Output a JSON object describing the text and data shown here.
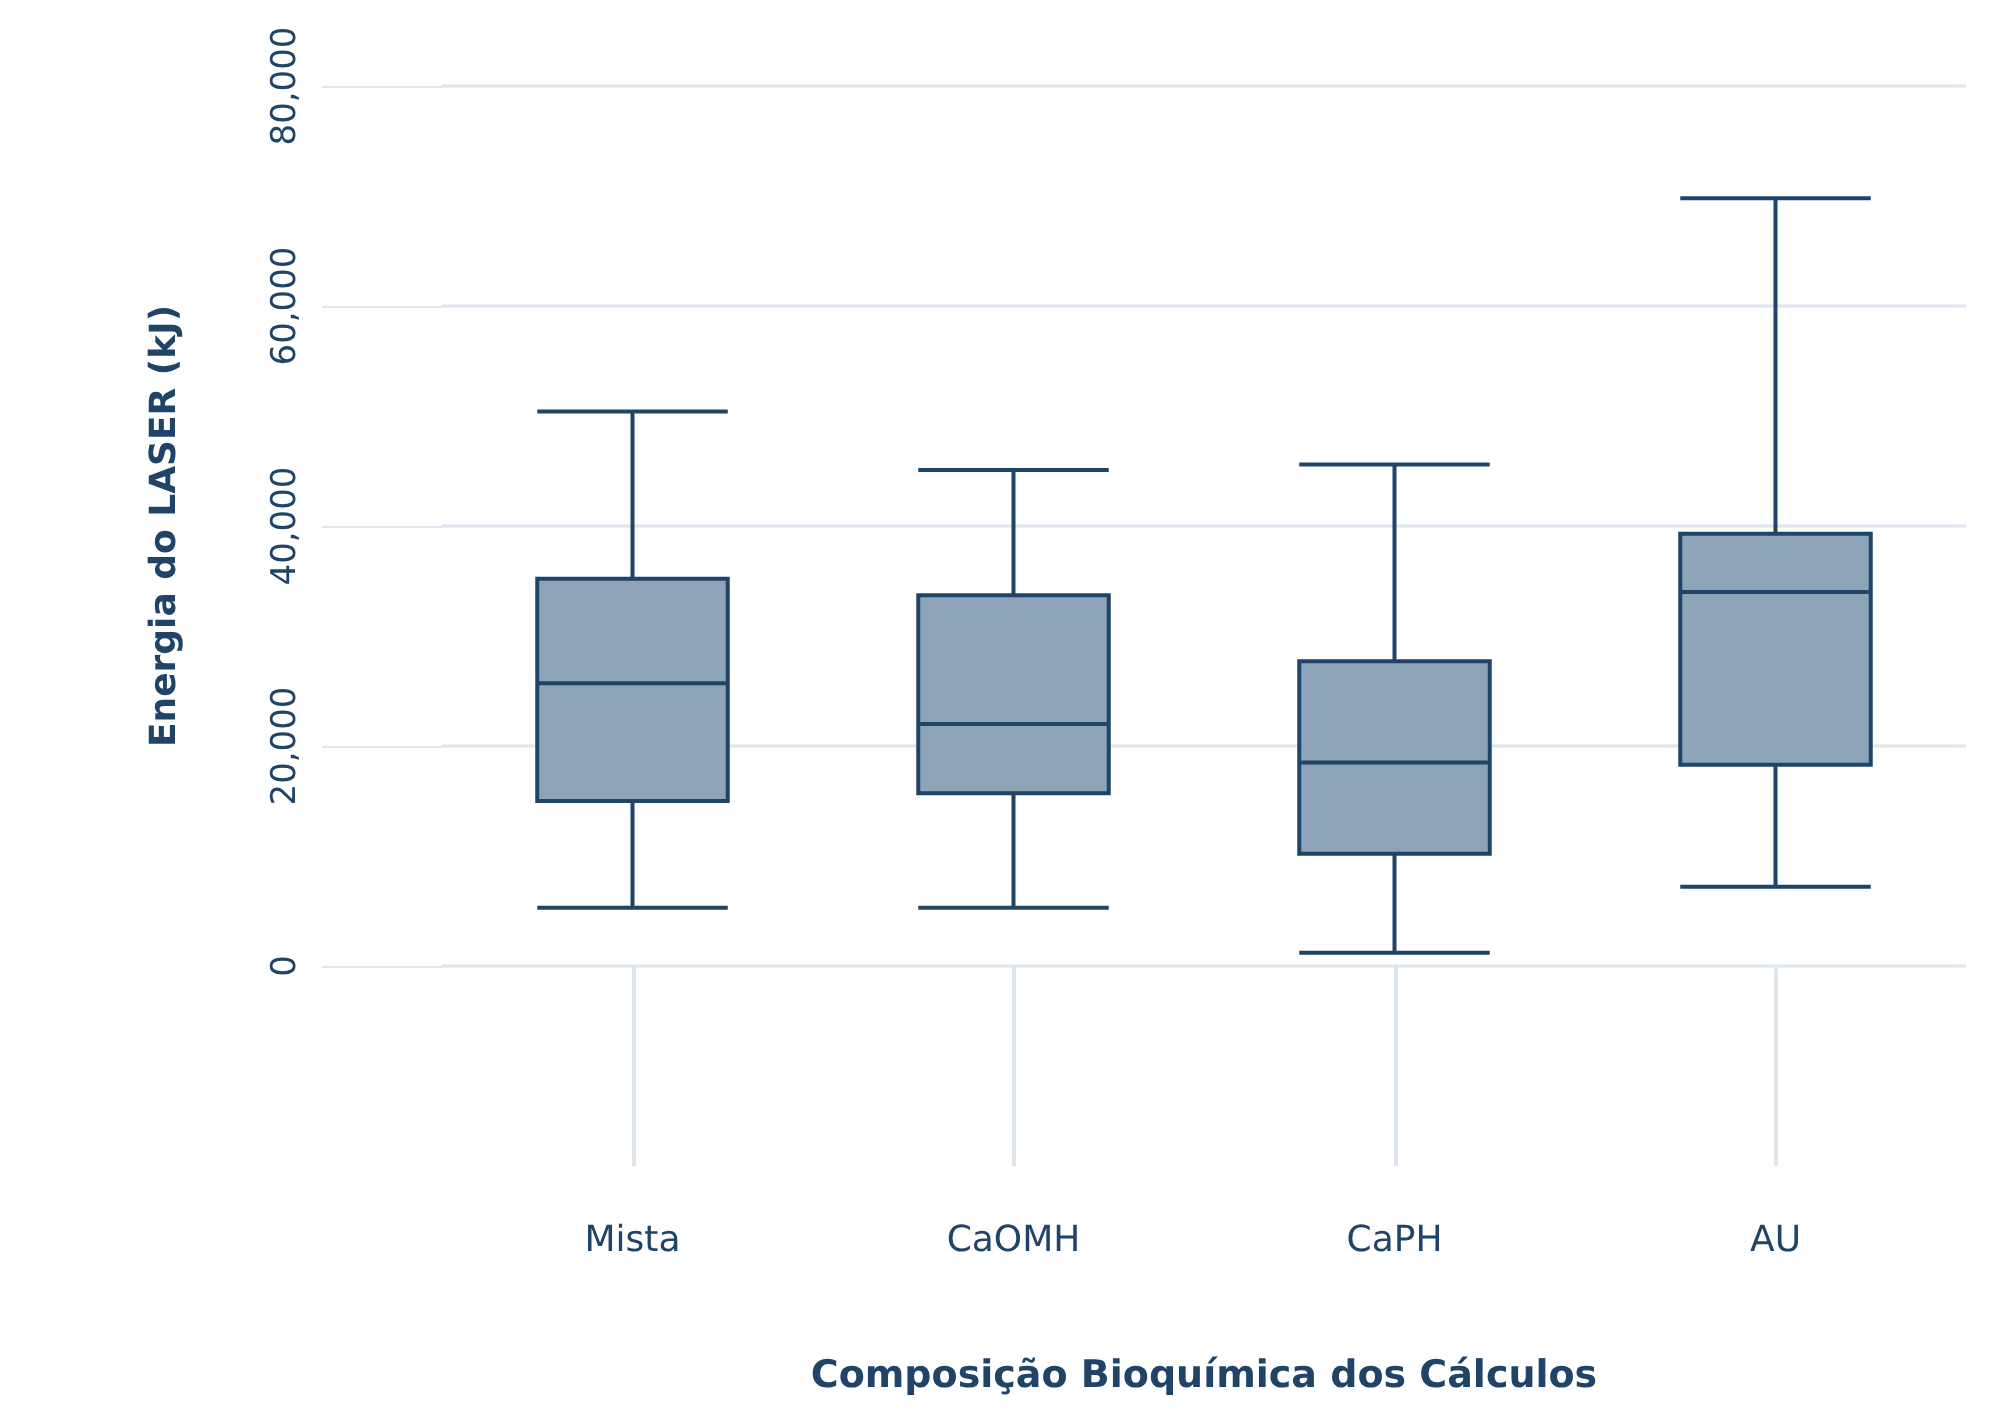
{
  "chart_data": {
    "type": "box",
    "xlabel": "Composição Bioquímica dos Cálculos",
    "ylabel": "Energia do LASER (kJ)",
    "categories": [
      "Mista",
      "CaOMH",
      "CaPH",
      "AU"
    ],
    "color": "#8da3b8",
    "boxes": [
      {
        "low": 5300,
        "q1": 15000,
        "median": 25700,
        "q3": 35200,
        "high": 50400
      },
      {
        "low": 5300,
        "q1": 15700,
        "median": 22000,
        "q3": 33700,
        "high": 45100
      },
      {
        "low": 1200,
        "q1": 10200,
        "median": 18500,
        "q3": 27700,
        "high": 45600
      },
      {
        "low": 7200,
        "q1": 18300,
        "median": 34000,
        "q3": 39300,
        "high": 69800
      }
    ],
    "ylim": [
      0,
      80000
    ],
    "yticks": [
      {
        "value": 0,
        "label": "0"
      },
      {
        "value": 20000,
        "label": "20,000"
      },
      {
        "value": 40000,
        "label": "40,000"
      },
      {
        "value": 60000,
        "label": "60,000"
      },
      {
        "value": 80000,
        "label": "80,000"
      }
    ],
    "grid": "y"
  }
}
